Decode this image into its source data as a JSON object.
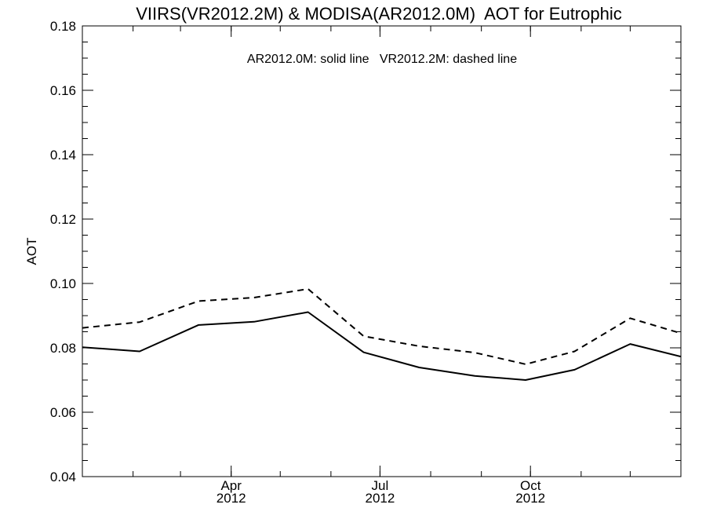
{
  "chart_data": {
    "type": "line",
    "title": "VIIRS(VR2012.2M) & MODISA(AR2012.0M)  AOT for Eutrophic",
    "annotation": "AR2012.0M: solid line   VR2012.2M: dashed line",
    "ylabel": "AOT",
    "xlabel": "",
    "ylim": [
      0.04,
      0.18
    ],
    "xlim": [
      "2012-01-01",
      "2013-01-01"
    ],
    "grid": false,
    "legend": "top-center",
    "y_ticks": [
      "0.04",
      "0.06",
      "0.08",
      "0.10",
      "0.12",
      "0.14",
      "0.16",
      "0.18"
    ],
    "x_ticks": [
      {
        "date": "2012-04-01",
        "label1": "Apr",
        "label2": "2012"
      },
      {
        "date": "2012-07-01",
        "label1": "Jul",
        "label2": "2012"
      },
      {
        "date": "2012-10-01",
        "label1": "Oct",
        "label2": "2012"
      }
    ],
    "x": [
      "2012-01-01",
      "2012-02-05",
      "2012-03-12",
      "2012-04-15",
      "2012-05-18",
      "2012-06-21",
      "2012-07-25",
      "2012-08-28",
      "2012-09-28",
      "2012-10-28",
      "2012-12-01",
      "2013-01-01"
    ],
    "series": [
      {
        "name": "AR2012.0M",
        "style": "solid",
        "color": "#000000",
        "values": [
          0.0802,
          0.0789,
          0.0871,
          0.0881,
          0.0911,
          0.0786,
          0.0739,
          0.0713,
          0.07,
          0.0732,
          0.0812,
          0.0773
        ]
      },
      {
        "name": "VR2012.2M",
        "style": "dashed",
        "color": "#000000",
        "values": [
          0.0862,
          0.088,
          0.0945,
          0.0956,
          0.0983,
          0.0836,
          0.0805,
          0.0785,
          0.0749,
          0.0789,
          0.0892,
          0.0845
        ]
      }
    ]
  }
}
